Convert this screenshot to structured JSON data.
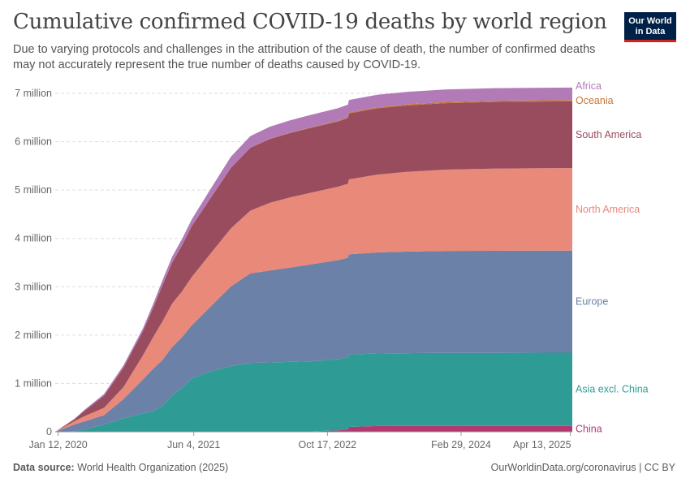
{
  "header": {
    "title": "Cumulative confirmed COVID-19 deaths by world region",
    "subtitle": "Due to varying protocols and challenges in the attribution of the cause of death, the number of confirmed deaths may not accurately represent the true number of deaths caused by COVID-19."
  },
  "logo": {
    "line1": "Our World",
    "line2": "in Data",
    "background": "#002147",
    "accent": "#ce261e"
  },
  "footer": {
    "source_label": "Data source:",
    "source_text": "World Health Organization (2025)",
    "url": "OurWorldinData.org/coronavirus | CC BY"
  },
  "chart_data": {
    "type": "area",
    "stacked": true,
    "title": "Cumulative confirmed COVID-19 deaths by world region",
    "xlabel": "",
    "ylabel": "",
    "x_unit": "years since 2020-01-01",
    "xlim": [
      0.0,
      5.3
    ],
    "ylim": [
      0,
      7000000
    ],
    "grid": true,
    "legend": "right",
    "y_ticks": [
      {
        "value": 0,
        "label": "0"
      },
      {
        "value": 1000000,
        "label": "1 million"
      },
      {
        "value": 2000000,
        "label": "2 million"
      },
      {
        "value": 3000000,
        "label": "3 million"
      },
      {
        "value": 4000000,
        "label": "4 million"
      },
      {
        "value": 5000000,
        "label": "5 million"
      },
      {
        "value": 6000000,
        "label": "6 million"
      },
      {
        "value": 7000000,
        "label": "7 million"
      }
    ],
    "x_ticks": [
      {
        "value": 0.03,
        "label": "Jan 12, 2020"
      },
      {
        "value": 1.42,
        "label": "Jun 4, 2021"
      },
      {
        "value": 2.79,
        "label": "Oct 17, 2022"
      },
      {
        "value": 4.16,
        "label": "Feb 29, 2024"
      },
      {
        "value": 5.28,
        "label": "Apr 13, 2025"
      }
    ],
    "x": [
      0.0,
      0.2,
      0.3,
      0.5,
      0.7,
      0.9,
      1.0,
      1.1,
      1.2,
      1.3,
      1.4,
      1.6,
      1.8,
      2.0,
      2.2,
      2.4,
      2.6,
      2.9,
      3.0,
      3.01,
      3.3,
      3.6,
      4.0,
      4.5,
      5.0,
      5.3
    ],
    "series": [
      {
        "name": "China",
        "color": "#b13970",
        "values": [
          0,
          3000,
          4600,
          4700,
          4700,
          4700,
          4800,
          4800,
          4800,
          4800,
          4800,
          4800,
          4800,
          4800,
          5000,
          5200,
          6000,
          30000,
          50000,
          100000,
          120000,
          121000,
          122000,
          122000,
          122000,
          122000
        ]
      },
      {
        "name": "Asia excl. China",
        "color": "#2e9c95",
        "values": [
          0,
          10000,
          40000,
          150000,
          270000,
          380000,
          420000,
          530000,
          750000,
          900000,
          1100000,
          1250000,
          1350000,
          1420000,
          1430000,
          1440000,
          1450000,
          1470000,
          1490000,
          1500000,
          1500000,
          1505000,
          1510000,
          1512000,
          1514000,
          1515000
        ]
      },
      {
        "name": "Europe",
        "color": "#6b81a8",
        "values": [
          0,
          140000,
          170000,
          190000,
          400000,
          700000,
          870000,
          950000,
          1000000,
          1050000,
          1100000,
          1350000,
          1650000,
          1850000,
          1900000,
          1950000,
          2000000,
          2050000,
          2060000,
          2070000,
          2090000,
          2100000,
          2110000,
          2110000,
          2110000,
          2110000
        ]
      },
      {
        "name": "North America",
        "color": "#e8897a",
        "values": [
          0,
          70000,
          110000,
          150000,
          250000,
          500000,
          650000,
          800000,
          900000,
          950000,
          1000000,
          1100000,
          1200000,
          1300000,
          1400000,
          1450000,
          1480000,
          1520000,
          1530000,
          1550000,
          1610000,
          1650000,
          1680000,
          1700000,
          1705000,
          1707000
        ]
      },
      {
        "name": "South America",
        "color": "#984c5e",
        "values": [
          0,
          40000,
          110000,
          250000,
          400000,
          500000,
          600000,
          750000,
          850000,
          950000,
          1050000,
          1150000,
          1250000,
          1300000,
          1320000,
          1330000,
          1340000,
          1350000,
          1360000,
          1365000,
          1370000,
          1372000,
          1375000,
          1378000,
          1380000,
          1380000
        ]
      },
      {
        "name": "Oceania",
        "color": "#c67535",
        "values": [
          0,
          0,
          0,
          100,
          900,
          1000,
          1000,
          1000,
          1100,
          1200,
          1300,
          2000,
          2500,
          3000,
          5000,
          8000,
          11000,
          15000,
          18000,
          19000,
          22000,
          24000,
          25000,
          26000,
          26500,
          27000
        ]
      },
      {
        "name": "Africa",
        "color": "#b27bb7",
        "values": [
          0,
          10000,
          20000,
          35000,
          50000,
          60000,
          80000,
          100000,
          120000,
          130000,
          140000,
          190000,
          230000,
          240000,
          250000,
          255000,
          258000,
          258000,
          258000,
          258000,
          258000,
          258000,
          259000,
          259000,
          259000,
          259000
        ]
      }
    ]
  }
}
